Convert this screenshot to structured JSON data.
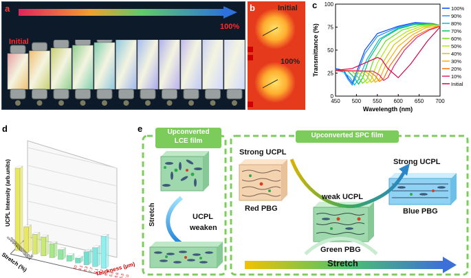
{
  "panels": {
    "a": {
      "letter": "a",
      "initial_label": "Initial",
      "final_label": "100%",
      "colors": {
        "bg": "#0c1a2a",
        "arrow_start": "#e0245e",
        "arrow_end": "#2d72d9",
        "label_red": "#ff2a2a"
      },
      "film_count": 11
    },
    "b": {
      "letter": "b",
      "initial_label": "Initial",
      "final_label": "100%"
    },
    "c": {
      "letter": "c"
    },
    "d": {
      "letter": "d",
      "zlabel": "UCPL Intensity (arb.units)",
      "xlabel": "Stretch (%)",
      "ylabel": "Thickness (μm)",
      "stretch_ticks": [
        "0",
        "10",
        "20",
        "30",
        "40",
        "50",
        "60",
        "70",
        "80",
        "90",
        "100"
      ],
      "thickness_ticks": [
        "10",
        "9.1",
        "8.3",
        "7.7",
        "7.1",
        "6.7",
        "6.3",
        "5.9",
        "5.6",
        "5.3",
        "5.0"
      ],
      "bar_values": [
        1.0,
        0.31,
        0.24,
        0.23,
        0.17,
        0.12,
        0.07,
        0.06,
        0.16,
        0.23,
        0.39
      ]
    },
    "e": {
      "letter": "e",
      "lce_title_line1": "Upconverted",
      "lce_title_line2": "LCE film",
      "spc_title": "Upconverted SPC film",
      "stretch_label": "Stretch",
      "ucpl_weaken_line1": "UCPL",
      "ucpl_weaken_line2": "weaken",
      "strong_ucpl_left": "Strong UCPL",
      "strong_ucpl_right": "Strong UCPL",
      "weak_ucpl": "weak UCPL",
      "red_pbg": "Red PBG",
      "green_pbg": "Green PBG",
      "blue_pbg": "Blue PBG",
      "bottom_stretch": "Stretch"
    }
  },
  "chart_data": {
    "type": "line",
    "title": "",
    "xlabel": "Wavelength (nm)",
    "ylabel": "Transmittance (%)",
    "xlim": [
      450,
      700
    ],
    "ylim": [
      0,
      100
    ],
    "xticks": [
      450,
      500,
      550,
      600,
      650,
      700
    ],
    "yticks": [
      0,
      25,
      50,
      75,
      100
    ],
    "legend_position": "right",
    "series": [
      {
        "name": "100%",
        "color": "#0044ff",
        "x": [
          450,
          470,
          480,
          490,
          500,
          520,
          550,
          600,
          640,
          680,
          700
        ],
        "y": [
          30,
          28,
          20,
          14,
          26,
          50,
          68,
          76,
          80,
          79,
          77
        ]
      },
      {
        "name": "90%",
        "color": "#1f8fff",
        "x": [
          450,
          470,
          480,
          490,
          500,
          520,
          550,
          600,
          640,
          680,
          700
        ],
        "y": [
          29,
          26,
          18,
          12,
          22,
          46,
          65,
          75,
          79,
          79,
          77
        ]
      },
      {
        "name": "80%",
        "color": "#00bcd4",
        "x": [
          450,
          470,
          485,
          495,
          505,
          525,
          555,
          600,
          640,
          680,
          700
        ],
        "y": [
          28,
          26,
          20,
          12,
          18,
          40,
          62,
          74,
          78,
          78,
          77
        ]
      },
      {
        "name": "70%",
        "color": "#00c853",
        "x": [
          450,
          480,
          495,
          505,
          515,
          530,
          560,
          600,
          640,
          680,
          700
        ],
        "y": [
          28,
          27,
          20,
          13,
          20,
          40,
          62,
          73,
          78,
          78,
          77
        ]
      },
      {
        "name": "60%",
        "color": "#64dd17",
        "x": [
          450,
          490,
          505,
          515,
          525,
          540,
          570,
          610,
          650,
          680,
          700
        ],
        "y": [
          28,
          27,
          20,
          14,
          18,
          38,
          60,
          72,
          77,
          78,
          77
        ]
      },
      {
        "name": "50%",
        "color": "#aeea00",
        "x": [
          450,
          500,
          515,
          525,
          535,
          550,
          580,
          620,
          655,
          680,
          700
        ],
        "y": [
          28,
          27,
          21,
          14,
          18,
          36,
          58,
          70,
          76,
          77,
          77
        ]
      },
      {
        "name": "40%",
        "color": "#d4c400",
        "x": [
          450,
          510,
          525,
          535,
          545,
          560,
          590,
          625,
          660,
          685,
          700
        ],
        "y": [
          28,
          27,
          22,
          15,
          18,
          34,
          56,
          68,
          75,
          77,
          77
        ]
      },
      {
        "name": "30%",
        "color": "#ffab00",
        "x": [
          450,
          520,
          535,
          545,
          555,
          570,
          600,
          635,
          665,
          690,
          700
        ],
        "y": [
          28,
          27,
          22,
          15,
          18,
          34,
          54,
          67,
          74,
          76,
          76
        ]
      },
      {
        "name": "20%",
        "color": "#ff6d00",
        "x": [
          450,
          530,
          545,
          555,
          565,
          580,
          610,
          640,
          670,
          690,
          700
        ],
        "y": [
          28,
          27,
          22,
          16,
          19,
          33,
          52,
          65,
          72,
          75,
          76
        ]
      },
      {
        "name": "10%",
        "color": "#e91e63",
        "x": [
          450,
          540,
          555,
          565,
          575,
          590,
          615,
          645,
          675,
          695,
          700
        ],
        "y": [
          28,
          27,
          23,
          17,
          20,
          33,
          50,
          64,
          72,
          75,
          76
        ]
      },
      {
        "name": "Initial",
        "color": "#d6004c",
        "x": [
          450,
          490,
          520,
          540,
          550,
          560,
          575,
          600,
          630,
          670,
          700
        ],
        "y": [
          28,
          30,
          36,
          40,
          42,
          40,
          30,
          20,
          35,
          60,
          75
        ]
      }
    ]
  }
}
